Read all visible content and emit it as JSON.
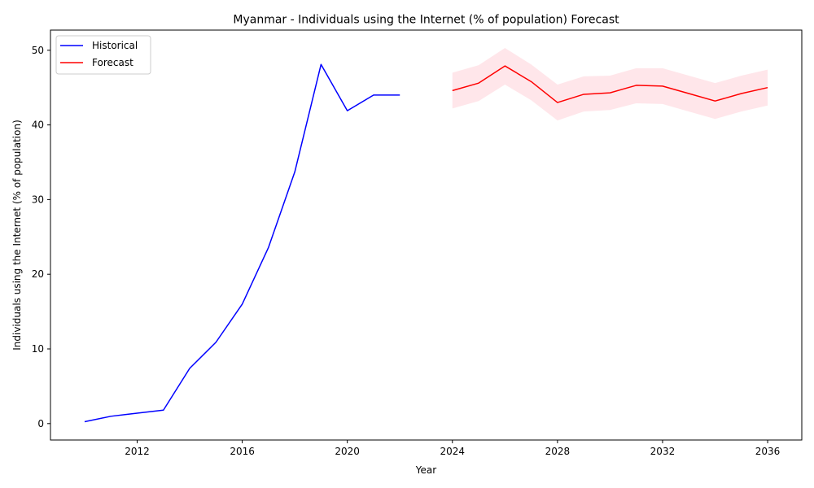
{
  "chart_data": {
    "type": "line",
    "title": "Myanmar - Individuals using the Internet (% of population) Forecast",
    "xlabel": "Year",
    "ylabel": "Individuals using the Internet (% of population)",
    "xlim": [
      2008.7,
      2037.3
    ],
    "ylim": [
      -2.2,
      52.7
    ],
    "x_ticks": [
      2012,
      2016,
      2020,
      2024,
      2028,
      2032,
      2036
    ],
    "y_ticks": [
      0,
      10,
      20,
      30,
      40,
      50
    ],
    "grid": false,
    "legend_position": "top-left",
    "series": [
      {
        "name": "Historical",
        "color": "#0000ff",
        "x": [
          2010,
          2011,
          2012,
          2013,
          2014,
          2015,
          2016,
          2017,
          2018,
          2019,
          2020,
          2021,
          2022
        ],
        "y": [
          0.25,
          0.98,
          1.4,
          1.8,
          7.4,
          10.9,
          16.0,
          23.6,
          33.7,
          48.1,
          41.9,
          44.0,
          44.0
        ]
      },
      {
        "name": "Forecast",
        "color": "#ff0000",
        "x": [
          2024,
          2025,
          2026,
          2027,
          2028,
          2029,
          2030,
          2031,
          2032,
          2033,
          2034,
          2035,
          2036
        ],
        "y": [
          44.6,
          45.6,
          47.9,
          45.8,
          43.0,
          44.1,
          44.3,
          45.3,
          45.2,
          44.2,
          43.2,
          44.2,
          45.0
        ],
        "lower": [
          42.2,
          43.2,
          45.4,
          43.3,
          40.6,
          41.8,
          42.0,
          42.9,
          42.8,
          41.8,
          40.8,
          41.8,
          42.6
        ],
        "upper": [
          47.0,
          48.0,
          50.3,
          48.1,
          45.4,
          46.5,
          46.6,
          47.6,
          47.6,
          46.6,
          45.6,
          46.6,
          47.4
        ],
        "band_color": "#ffc0cb"
      }
    ]
  }
}
